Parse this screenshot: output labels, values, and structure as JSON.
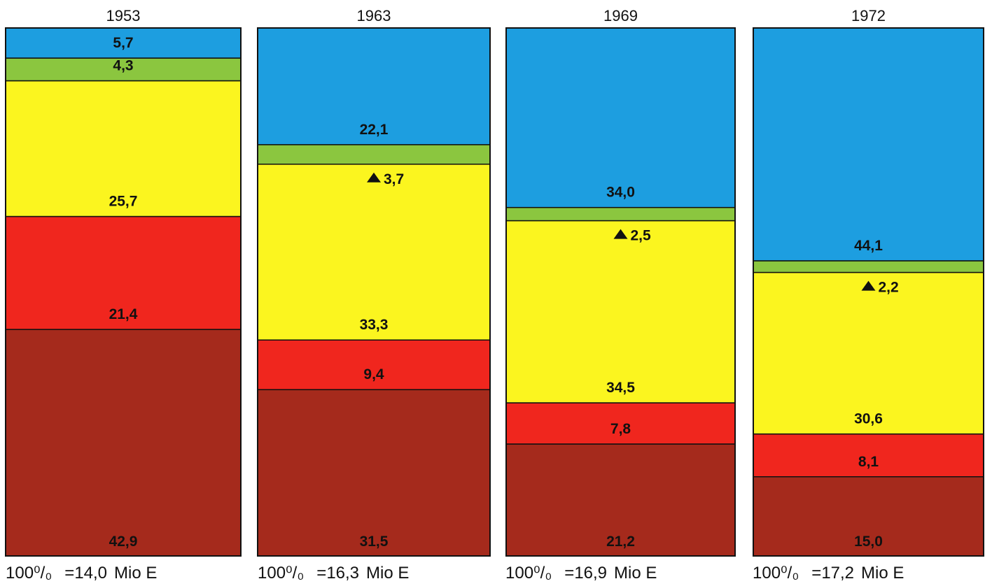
{
  "chart_data": {
    "type": "bar",
    "stacked": "100%",
    "categories": [
      "1953",
      "1963",
      "1969",
      "1972"
    ],
    "series_order_bottom_to_top": [
      "brown",
      "red",
      "yellow",
      "green",
      "blue"
    ],
    "series": [
      {
        "color": "#a52a1c",
        "values": [
          42.9,
          31.5,
          21.2,
          15.0
        ],
        "labels": [
          "42,9",
          "31,5",
          "21,2",
          "15,0"
        ]
      },
      {
        "color": "#f0261e",
        "values": [
          21.4,
          9.4,
          7.8,
          8.1
        ],
        "labels": [
          "21,4",
          "9,4",
          "7,8",
          "8,1"
        ]
      },
      {
        "color": "#fbf51f",
        "values": [
          25.7,
          33.3,
          34.5,
          30.6
        ],
        "labels": [
          "25,7",
          "33,3",
          "34,5",
          "30,6"
        ]
      },
      {
        "color": "#8bc63f",
        "values": [
          4.3,
          3.7,
          2.5,
          2.2
        ],
        "labels": [
          "4,3",
          "3,7",
          "2,5",
          "2,2"
        ],
        "marker": [
          false,
          true,
          true,
          true
        ]
      },
      {
        "color": "#1d9ee0",
        "values": [
          5.7,
          22.1,
          34.0,
          44.1
        ],
        "labels": [
          "5,7",
          "22,1",
          "34,0",
          "44,1"
        ]
      }
    ],
    "totals": [
      {
        "pct": "100%",
        "value": "14,0",
        "unit": "Mio E"
      },
      {
        "pct": "100%",
        "value": "16,3",
        "unit": "Mio E"
      },
      {
        "pct": "100%",
        "value": "16,9",
        "unit": "Mio E"
      },
      {
        "pct": "100%",
        "value": "17,2",
        "unit": "Mio E"
      }
    ]
  },
  "footer": [
    {
      "pct": "100⁰/₀",
      "eq": "=14,0",
      "unit": "Mio E"
    },
    {
      "pct": "100⁰/₀",
      "eq": "=16,3",
      "unit": "Mio E"
    },
    {
      "pct": "100⁰/₀",
      "eq": "=16,9",
      "unit": "Mio E"
    },
    {
      "pct": "100⁰/₀",
      "eq": "=17,2",
      "unit": "Mio E"
    }
  ]
}
